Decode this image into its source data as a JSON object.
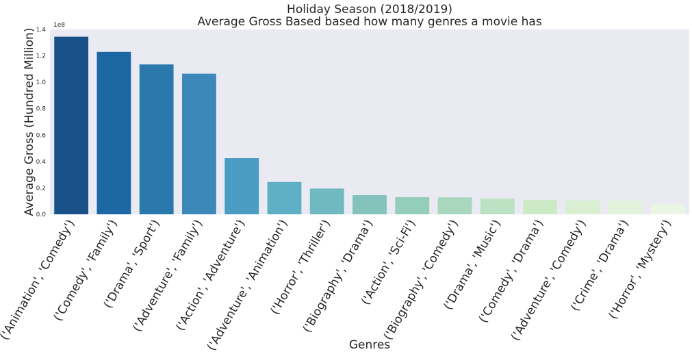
{
  "chart_data": {
    "type": "bar",
    "title": "Holiday Season (2018/2019)",
    "subtitle": "Average Gross Based based how many genres a movie has",
    "xlabel": "Genres",
    "ylabel": "Average Gross (Hundred Million)",
    "y_offset_label": "1e8",
    "ylim": [
      0,
      1.4
    ],
    "yticks": [
      "0.0",
      "0.2",
      "0.4",
      "0.6",
      "0.8",
      "1.0",
      "1.2",
      "1.4"
    ],
    "grid": false,
    "categories": [
      "('Animation', 'Comedy')",
      "('Comedy', 'Family')",
      "('Drama', 'Sport')",
      "('Adventure', 'Family')",
      "('Action', 'Adventure')",
      "('Adventure', 'Animation')",
      "('Horror', 'Thriller')",
      "('Biography', 'Drama')",
      "('Action', 'Sci-Fi')",
      "('Biography', 'Comedy')",
      "('Drama', 'Music')",
      "('Comedy', 'Drama')",
      "('Adventure', 'Comedy')",
      "('Crime', 'Drama')",
      "('Horror', 'Mystery')"
    ],
    "values": [
      1.345,
      1.23,
      1.135,
      1.065,
      0.425,
      0.245,
      0.195,
      0.145,
      0.13,
      0.128,
      0.12,
      0.11,
      0.105,
      0.105,
      0.08
    ],
    "colors": [
      "#1a5189",
      "#1d67a4",
      "#2b79ac",
      "#3b88b9",
      "#4a9cc3",
      "#5eafc6",
      "#70b9c0",
      "#84c3bc",
      "#95cdbb",
      "#a9d7bd",
      "#bce2c3",
      "#cceac6",
      "#d8efd1",
      "#e1f2da",
      "#eaf6e3"
    ],
    "background": "#eaeaf2"
  }
}
